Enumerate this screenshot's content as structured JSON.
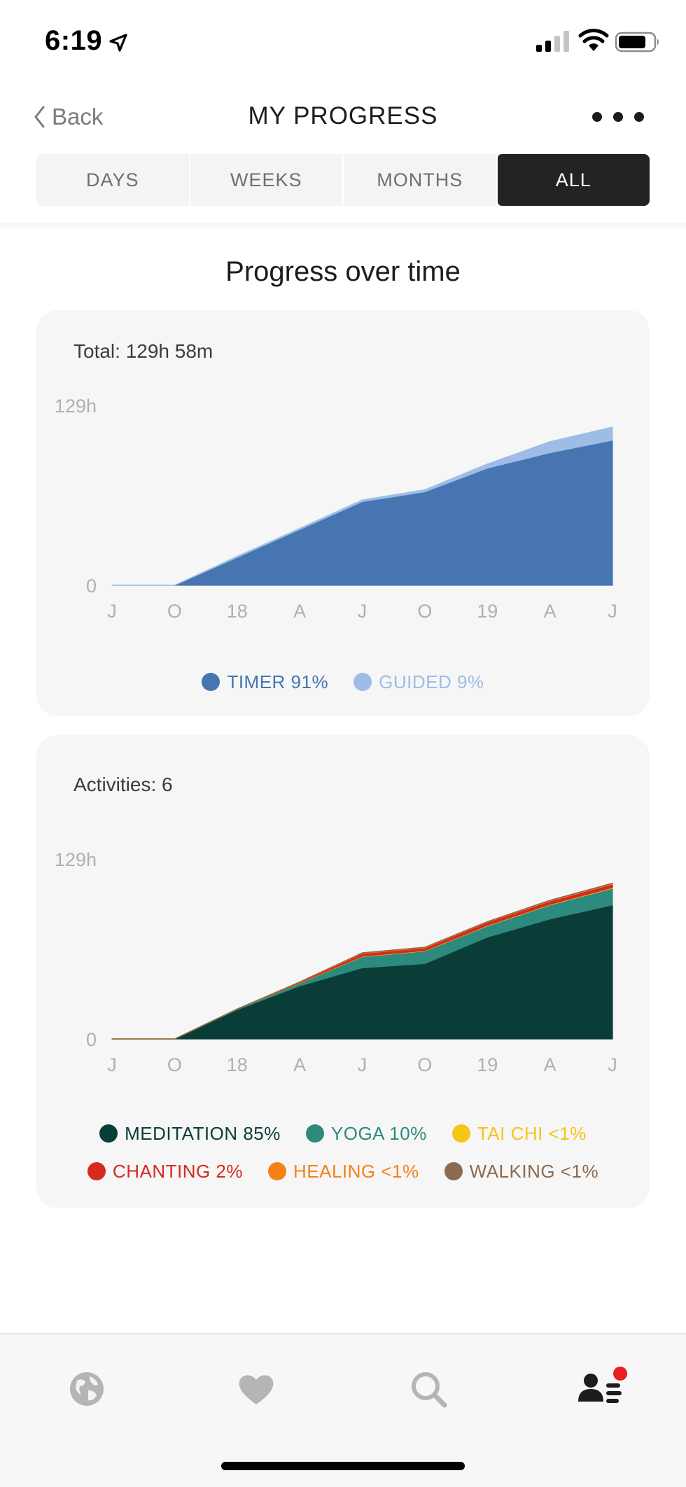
{
  "status_bar": {
    "time": "6:19",
    "icons": [
      "location-arrow-icon",
      "signal-icon",
      "wifi-icon",
      "battery-icon"
    ]
  },
  "header": {
    "back_label": "Back",
    "title": "MY PROGRESS",
    "more_icon": "more-horizontal-icon"
  },
  "tabs": [
    {
      "label": "DAYS",
      "active": false
    },
    {
      "label": "WEEKS",
      "active": false
    },
    {
      "label": "MONTHS",
      "active": false
    },
    {
      "label": "ALL",
      "active": true
    }
  ],
  "section_title": "Progress over time",
  "colors": {
    "timer": "#4675b2",
    "guided": "#9dbde7",
    "meditation": "#0b3d38",
    "yoga": "#2d8a7e",
    "tai_chi": "#f5c518",
    "chanting": "#d42b1e",
    "healing": "#f58215",
    "walking": "#8c6a4f",
    "accent": "#e8201f"
  },
  "cards": {
    "total": {
      "title": "Total: 129h 58m"
    },
    "activities": {
      "title": "Activities: 6"
    }
  },
  "chart_data": [
    {
      "type": "area",
      "stacked": true,
      "x": [
        "J",
        "O",
        "18",
        "A",
        "J",
        "O",
        "19",
        "A",
        "J"
      ],
      "y_tick_labels": [
        "129h",
        "0"
      ],
      "ylim": [
        0,
        129
      ],
      "grid": false,
      "legend": "bottom-center",
      "series": [
        {
          "name": "TIMER 91%",
          "color": "#4675b2",
          "values": [
            0,
            0,
            20,
            40,
            60,
            67,
            84,
            95,
            104
          ]
        },
        {
          "name": "GUIDED 9%",
          "color": "#9dbde7",
          "values": [
            0,
            0,
            0.8,
            0.8,
            1.2,
            1.5,
            3,
            8,
            9.5
          ]
        }
      ]
    },
    {
      "type": "area",
      "stacked": true,
      "x": [
        "J",
        "O",
        "18",
        "A",
        "J",
        "O",
        "19",
        "A",
        "J"
      ],
      "y_tick_labels": [
        "129h",
        "0"
      ],
      "ylim": [
        0,
        129
      ],
      "grid": false,
      "legend": "bottom-center",
      "series": [
        {
          "name": "MEDITATION 85%",
          "color": "#0b3d38",
          "values": [
            0,
            0,
            21,
            38,
            51,
            54,
            73,
            86,
            96
          ]
        },
        {
          "name": "YOGA 10%",
          "color": "#2d8a7e",
          "values": [
            0,
            0,
            0.5,
            2,
            8,
            9,
            8,
            10,
            12
          ]
        },
        {
          "name": "TAI CHI <1%",
          "color": "#f5c518",
          "values": [
            0,
            0,
            0,
            0.2,
            0.3,
            0.3,
            0.4,
            0.4,
            0.5
          ]
        },
        {
          "name": "CHANTING 2%",
          "color": "#d42b1e",
          "values": [
            0,
            0,
            0,
            0.5,
            2,
            2,
            2.3,
            2.4,
            2.5
          ]
        },
        {
          "name": "HEALING <1%",
          "color": "#f58215",
          "values": [
            0,
            0,
            0,
            0.1,
            0.3,
            0.3,
            0.3,
            0.4,
            0.4
          ]
        },
        {
          "name": "WALKING <1%",
          "color": "#8c6a4f",
          "values": [
            0,
            0,
            0,
            0.1,
            0.2,
            0.2,
            0.2,
            0.3,
            0.3
          ]
        }
      ]
    }
  ],
  "tabbar": {
    "items": [
      {
        "name": "globe-icon",
        "active": false
      },
      {
        "name": "heart-icon",
        "active": false
      },
      {
        "name": "search-icon",
        "active": false
      },
      {
        "name": "profile-list-icon",
        "active": true,
        "badge": true
      }
    ]
  }
}
